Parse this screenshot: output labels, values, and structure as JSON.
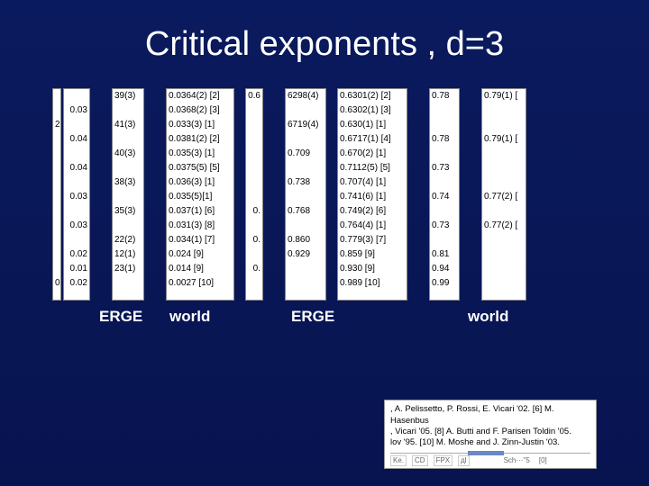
{
  "title": "Critical exponents , d=3",
  "labels": {
    "l1": "ERGE",
    "l2": "world",
    "l3": "ERGE",
    "l4": "world"
  },
  "col1": [
    "",
    "0.03",
    "",
    "0.04",
    "",
    "0.04",
    "",
    "0.03",
    "",
    "0.03",
    "",
    "0.02",
    "0.01",
    "0.02"
  ],
  "col1b": [
    "",
    "",
    "2",
    "",
    "",
    "",
    "",
    "",
    "",
    "",
    "",
    "",
    "",
    "0"
  ],
  "col2": [
    "39(3)",
    "",
    "41(3)",
    "",
    "40(3)",
    "",
    "38(3)",
    "",
    "35(3)",
    "",
    "22(2)",
    "12(1)",
    "23(1)"
  ],
  "col3": [
    "0.0364(2) [2]",
    "0.0368(2) [3]",
    "0.033(3) [1]",
    "0.0381(2) [2]",
    "0.035(3) [1]",
    "0.0375(5) [5]",
    "0.036(3) [1]",
    "0.035(5)[1]",
    "0.037(1) [6]",
    "0.031(3) [8]",
    "0.034(1) [7]",
    "0.024 [9]",
    "0.014 [9]",
    "0.0027 [10]"
  ],
  "col4": [
    "0.6",
    "",
    "",
    "",
    "",
    "",
    "",
    "",
    "0.",
    "",
    "0.",
    "",
    "0.",
    ""
  ],
  "col5": [
    "6298(4)",
    "",
    "6719(4)",
    "",
    "0.709",
    "",
    "0.738",
    "",
    "0.768",
    "",
    "0.860",
    "0.929",
    ""
  ],
  "col6": [
    "0.6301(2) [2]",
    "0.6302(1) [3]",
    "0.630(1) [1]",
    "0.6717(1) [4]",
    "0.670(2) [1]",
    "0.7112(5) [5]",
    "0.707(4) [1]",
    "0.741(6) [1]",
    "0.749(2) [6]",
    "0.764(4) [1]",
    "0.779(3) [7]",
    "0.859 [9]",
    "0.930 [9]",
    "0.989 [10]"
  ],
  "col7": [
    "0.78",
    "",
    "",
    "0.78",
    "",
    "0.73",
    "",
    "0.74",
    "",
    "0.73",
    "",
    "0.81",
    "0.94",
    "0.99"
  ],
  "col8": [
    "0.79(1) [",
    "",
    "",
    "0.79(1) [",
    "",
    "",
    "",
    "0.77(2) [",
    "",
    "0.77(2) [",
    "",
    "",
    "",
    ""
  ],
  "cite": {
    "l1": ", A. Pelissetto, P. Rossi, E. Vicari '02. [6] M. Hasenbus",
    "l2": ", Vicari '05. [8] A. Butti and F. Parisen Toldin '05.",
    "l3": "lov '95. [10] M. Moshe and J. Zinn-Justin '03.",
    "t1": "Ke.",
    "t2": "CD",
    "t3": "FPX",
    "t4": "дl",
    "t5": "Sch···''5",
    "t6": "[0]"
  },
  "colors": {
    "bg": "#0a1a5e",
    "white": "#ffffff"
  }
}
